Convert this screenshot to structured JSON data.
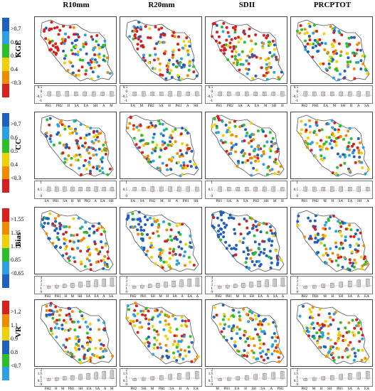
{
  "columns": [
    "R10mm",
    "R20mm",
    "SDII",
    "PRCPTOT"
  ],
  "rows": [
    {
      "metric": "KGE",
      "scale": [
        ">0.7",
        "0.6",
        "0.5",
        "0.4",
        "<0.3"
      ],
      "colors": [
        "#1f5fbf",
        "#2aa0e6",
        "#2bbf2b",
        "#f0d000",
        "#f08a00",
        "#d81e1e"
      ],
      "box_ticks": [
        "0.5",
        "0",
        "-0.5",
        "-1"
      ],
      "box_labels": [
        [
          "PH1",
          "PH2",
          "H",
          "SA",
          "EA",
          "SH",
          "A",
          "M"
        ],
        [
          "EA",
          "M",
          "PH2",
          "SA",
          "H",
          "PH1",
          "A",
          "SH"
        ],
        [
          "PH1",
          "PH2",
          "SA",
          "A",
          "EA",
          "M",
          "SH",
          "H"
        ],
        [
          "PH2",
          "PH1",
          "EA",
          "M",
          "SH",
          "H",
          "A",
          "SA"
        ]
      ]
    },
    {
      "metric": "CC",
      "scale": [
        ">0.7",
        "0.6",
        "0.5",
        "0.4",
        "<0.3"
      ],
      "colors": [
        "#1f5fbf",
        "#2aa0e6",
        "#2bbf2b",
        "#f0d000",
        "#f08a00",
        "#d81e1e"
      ],
      "box_ticks": [
        "1",
        "0.5",
        "0"
      ],
      "box_labels": [
        [
          "SA",
          "PH1",
          "SA",
          "H",
          "M",
          "PH2",
          "A",
          "EA",
          "SH"
        ],
        [
          "EA",
          "SA",
          "PH2",
          "M",
          "H",
          "A",
          "PH1",
          "SH"
        ],
        [
          "PH1",
          "SA",
          "A",
          "EA",
          "PH2",
          "SH",
          "M",
          "H"
        ],
        [
          "PH1",
          "PH2",
          "M",
          "H",
          "SA",
          "EA",
          "SH",
          "A"
        ]
      ]
    },
    {
      "metric": "Bias",
      "scale": [
        ">1.55",
        "1.35",
        "1.15",
        "0.85",
        "<0.65"
      ],
      "colors": [
        "#d81e1e",
        "#f08a00",
        "#f0d000",
        "#2bbf2b",
        "#2aa0e6",
        "#1f5fbf"
      ],
      "box_ticks": [
        "4",
        "3",
        "2",
        "1",
        "0"
      ],
      "box_labels": [
        [
          "PH2",
          "PH1",
          "H",
          "M",
          "SH",
          "SA",
          "EA",
          "A",
          "SA"
        ],
        [
          "PH2",
          "PH1",
          "SH",
          "M",
          "H",
          "SA",
          "A",
          "EA",
          "A"
        ],
        [
          "PH2",
          "PH1",
          "M",
          "H",
          "SH",
          "EA",
          "A",
          "SA",
          "A"
        ],
        [
          "PH2",
          "PH1",
          "M",
          "H",
          "SH",
          "SA",
          "A",
          "EA"
        ]
      ]
    },
    {
      "metric": "VR",
      "scale": [
        ">1.2",
        "1.1",
        "0.9",
        "0.8",
        "<0.7"
      ],
      "colors": [
        "#d81e1e",
        "#f08a00",
        "#f0d000",
        "#1f5fbf",
        "#2bbf2b",
        "#2aa0e6"
      ],
      "box_ticks": [
        "2",
        "1.5",
        "1",
        "0.5",
        "0"
      ],
      "box_labels": [
        [
          "PH2",
          "H",
          "M",
          "PH1",
          "SH",
          "EA",
          "SA",
          "A",
          "M"
        ],
        [
          "PH2",
          "SH",
          "M",
          "PH1",
          "SA",
          "H",
          "A",
          "EA"
        ],
        [
          "M",
          "PH1",
          "EA",
          "H",
          "SH",
          "SA",
          "A",
          "PH1"
        ],
        [
          "PH2",
          "M",
          "H",
          "SH",
          "PH1",
          "SA",
          "A",
          "EA"
        ]
      ]
    }
  ]
}
